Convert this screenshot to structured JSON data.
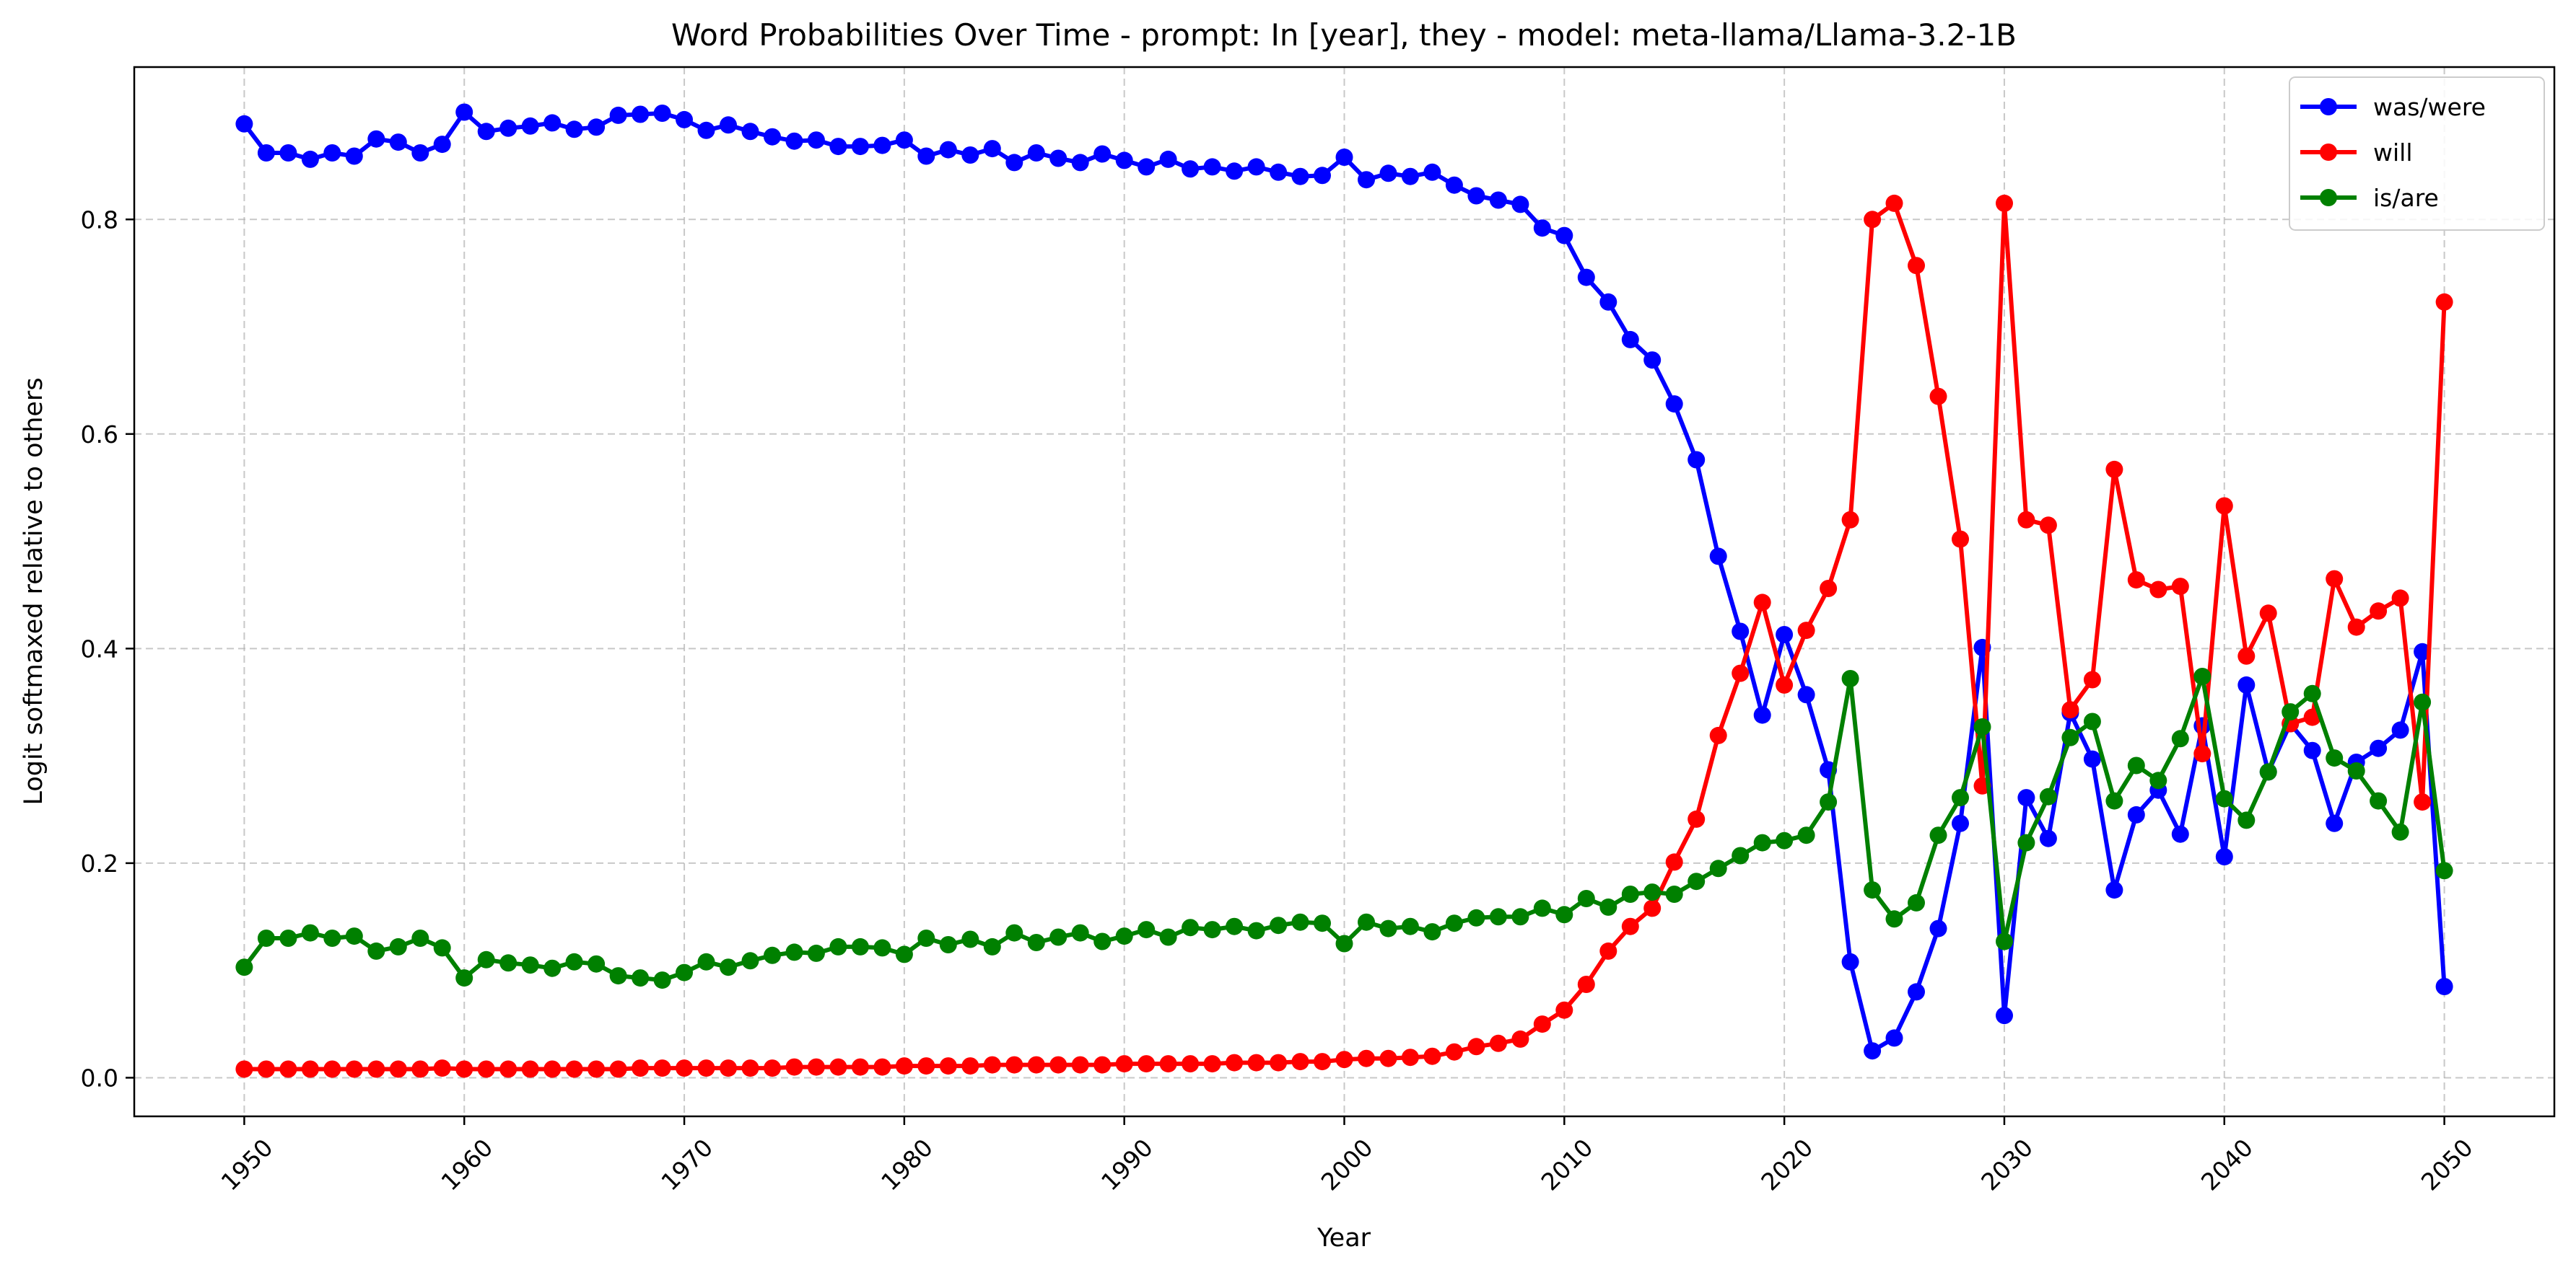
{
  "chart_data": {
    "type": "line",
    "title": "Word Probabilities Over Time - prompt: In [year], they - model: meta-llama/Llama-3.2-1B",
    "xlabel": "Year",
    "ylabel": "Logit softmaxed relative to others",
    "xlim": [
      1945,
      2055
    ],
    "ylim": [
      -0.036,
      0.942
    ],
    "xticks": [
      1950,
      1960,
      1970,
      1980,
      1990,
      2000,
      2010,
      2020,
      2030,
      2040,
      2050
    ],
    "yticks": [
      0.0,
      0.2,
      0.4,
      0.6,
      0.8
    ],
    "ytick_labels": [
      "0.0",
      "0.2",
      "0.4",
      "0.6",
      "0.8"
    ],
    "grid": true,
    "legend_position": "top-right",
    "x_start": 1950,
    "x_end": 2050,
    "series": [
      {
        "name": "was/were",
        "color": "#0000ff",
        "values": [
          0.889,
          0.862,
          0.862,
          0.856,
          0.862,
          0.859,
          0.875,
          0.872,
          0.862,
          0.87,
          0.9,
          0.882,
          0.885,
          0.887,
          0.89,
          0.884,
          0.886,
          0.897,
          0.898,
          0.899,
          0.893,
          0.883,
          0.888,
          0.882,
          0.877,
          0.873,
          0.874,
          0.868,
          0.868,
          0.869,
          0.874,
          0.859,
          0.865,
          0.86,
          0.866,
          0.853,
          0.862,
          0.857,
          0.853,
          0.861,
          0.855,
          0.849,
          0.856,
          0.847,
          0.849,
          0.845,
          0.849,
          0.844,
          0.84,
          0.841,
          0.858,
          0.837,
          0.843,
          0.84,
          0.844,
          0.832,
          0.822,
          0.818,
          0.814,
          0.792,
          0.785,
          0.746,
          0.723,
          0.688,
          0.669,
          0.628,
          0.576,
          0.486,
          0.416,
          0.338,
          0.413,
          0.357,
          0.287,
          0.108,
          0.025,
          0.037,
          0.08,
          0.139,
          0.237,
          0.401,
          0.058,
          0.261,
          0.223,
          0.34,
          0.297,
          0.175,
          0.245,
          0.268,
          0.227,
          0.328,
          0.206,
          0.366,
          0.285,
          0.33,
          0.305,
          0.237,
          0.294,
          0.307,
          0.324,
          0.397,
          0.085
        ]
      },
      {
        "name": "will",
        "color": "#ff0000",
        "values": [
          0.008,
          0.008,
          0.008,
          0.008,
          0.008,
          0.008,
          0.008,
          0.008,
          0.008,
          0.009,
          0.008,
          0.008,
          0.008,
          0.008,
          0.008,
          0.008,
          0.008,
          0.008,
          0.009,
          0.009,
          0.009,
          0.009,
          0.009,
          0.009,
          0.009,
          0.01,
          0.01,
          0.01,
          0.01,
          0.01,
          0.011,
          0.011,
          0.011,
          0.011,
          0.012,
          0.012,
          0.012,
          0.012,
          0.012,
          0.012,
          0.013,
          0.013,
          0.013,
          0.013,
          0.013,
          0.014,
          0.014,
          0.014,
          0.015,
          0.015,
          0.017,
          0.018,
          0.018,
          0.019,
          0.02,
          0.024,
          0.029,
          0.032,
          0.036,
          0.05,
          0.063,
          0.087,
          0.118,
          0.141,
          0.158,
          0.201,
          0.241,
          0.319,
          0.377,
          0.443,
          0.366,
          0.417,
          0.456,
          0.52,
          0.8,
          0.815,
          0.757,
          0.635,
          0.502,
          0.272,
          0.815,
          0.52,
          0.515,
          0.343,
          0.371,
          0.567,
          0.464,
          0.455,
          0.458,
          0.302,
          0.533,
          0.393,
          0.433,
          0.33,
          0.336,
          0.465,
          0.42,
          0.435,
          0.447,
          0.257,
          0.723
        ]
      },
      {
        "name": "is/are",
        "color": "#008000",
        "values": [
          0.103,
          0.13,
          0.13,
          0.135,
          0.13,
          0.132,
          0.118,
          0.122,
          0.13,
          0.121,
          0.093,
          0.11,
          0.107,
          0.105,
          0.102,
          0.108,
          0.106,
          0.095,
          0.093,
          0.091,
          0.098,
          0.108,
          0.103,
          0.109,
          0.114,
          0.117,
          0.116,
          0.122,
          0.122,
          0.121,
          0.115,
          0.13,
          0.124,
          0.129,
          0.122,
          0.135,
          0.126,
          0.131,
          0.135,
          0.127,
          0.132,
          0.138,
          0.131,
          0.14,
          0.138,
          0.141,
          0.137,
          0.142,
          0.145,
          0.144,
          0.125,
          0.145,
          0.139,
          0.141,
          0.136,
          0.144,
          0.149,
          0.15,
          0.15,
          0.158,
          0.152,
          0.167,
          0.159,
          0.171,
          0.173,
          0.171,
          0.183,
          0.195,
          0.207,
          0.219,
          0.221,
          0.226,
          0.257,
          0.372,
          0.175,
          0.148,
          0.163,
          0.226,
          0.261,
          0.327,
          0.127,
          0.219,
          0.262,
          0.317,
          0.332,
          0.258,
          0.291,
          0.277,
          0.316,
          0.374,
          0.26,
          0.24,
          0.285,
          0.341,
          0.358,
          0.298,
          0.286,
          0.258,
          0.229,
          0.35,
          0.193
        ]
      }
    ]
  }
}
